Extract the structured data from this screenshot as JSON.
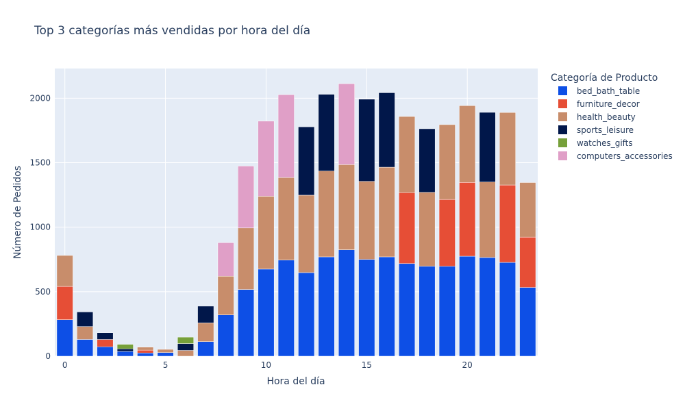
{
  "chart_data": {
    "type": "bar",
    "barmode": "stack",
    "title": "Top 3 categorías más vendidas por hora del día",
    "xlabel": "Hora del día",
    "ylabel": "Número de Pedidos",
    "legend_title": "Categoría de Producto",
    "legend_position": "right",
    "grid": true,
    "ylim": [
      0,
      2230
    ],
    "xlim": [
      -0.5,
      23.5
    ],
    "yticks": [
      0,
      500,
      1000,
      1500,
      2000
    ],
    "xticks": [
      0,
      5,
      10,
      15,
      20
    ],
    "x": [
      0,
      1,
      2,
      3,
      4,
      5,
      6,
      7,
      8,
      9,
      10,
      11,
      12,
      13,
      14,
      15,
      16,
      17,
      18,
      19,
      20,
      21,
      22,
      23
    ],
    "colors": {
      "plot_bg": "#e5ecf6",
      "grid": "#ffffff",
      "text": "#2a3f5f"
    },
    "series": [
      {
        "name": "bed_bath_table",
        "color": "#0d4fe6",
        "values": [
          283,
          130,
          73,
          37,
          25,
          28,
          null,
          113,
          320,
          517,
          675,
          745,
          648,
          770,
          825,
          750,
          770,
          718,
          697,
          697,
          775,
          765,
          727,
          533
        ]
      },
      {
        "name": "furniture_decor",
        "color": "#e64e36",
        "values": [
          258,
          null,
          57,
          null,
          22,
          null,
          null,
          null,
          null,
          null,
          null,
          null,
          null,
          null,
          null,
          null,
          null,
          550,
          null,
          518,
          572,
          null,
          600,
          390
        ]
      },
      {
        "name": "health_beauty",
        "color": "#c88d6b",
        "values": [
          240,
          100,
          null,
          null,
          23,
          25,
          45,
          145,
          300,
          477,
          565,
          640,
          600,
          665,
          660,
          605,
          695,
          590,
          573,
          580,
          595,
          585,
          562,
          423
        ]
      },
      {
        "name": "sports_leisure",
        "color": "#01174a",
        "values": [
          null,
          113,
          52,
          20,
          null,
          null,
          53,
          130,
          null,
          null,
          null,
          null,
          530,
          595,
          null,
          637,
          577,
          null,
          493,
          null,
          null,
          540,
          null,
          null
        ]
      },
      {
        "name": "watches_gifts",
        "color": "#76a03a",
        "values": [
          null,
          null,
          null,
          35,
          null,
          null,
          50,
          null,
          null,
          null,
          null,
          null,
          null,
          null,
          null,
          null,
          null,
          null,
          null,
          null,
          null,
          null,
          null,
          null
        ]
      },
      {
        "name": "computers_accessories",
        "color": "#e09fc7",
        "values": [
          null,
          null,
          null,
          null,
          null,
          null,
          null,
          null,
          260,
          480,
          582,
          642,
          null,
          null,
          627,
          null,
          null,
          null,
          null,
          null,
          null,
          null,
          null,
          null
        ]
      }
    ]
  }
}
